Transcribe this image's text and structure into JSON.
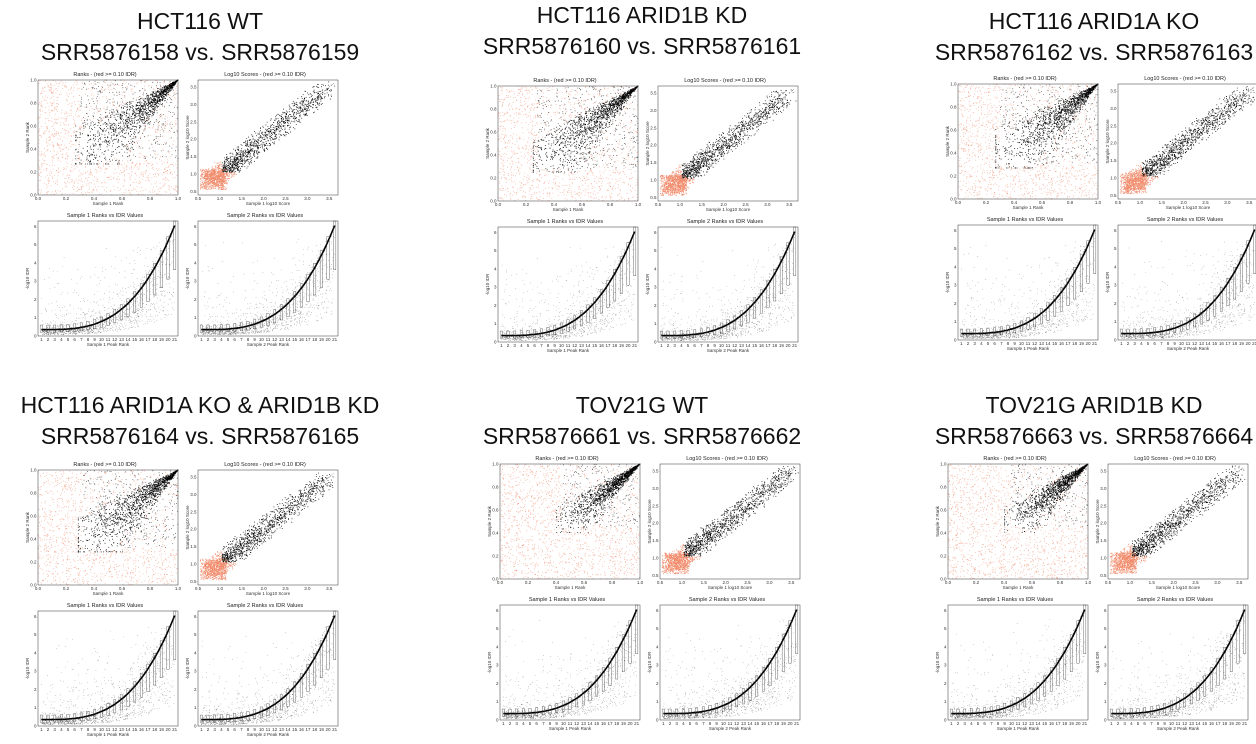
{
  "panels": [
    {
      "title_line1": "HCT116 WT",
      "title_line2": "SRR5876158 vs. SRR5876159",
      "cutoff": 0.3,
      "spread": 0.55,
      "density": 1.0
    },
    {
      "title_line1": "HCT116 ARID1B KD",
      "title_line2": "SRR5876160 vs. SRR5876161",
      "cutoff": 0.28,
      "spread": 0.5,
      "density": 1.0
    },
    {
      "title_line1": "HCT116 ARID1A KO",
      "title_line2": "SRR5876162 vs. SRR5876163",
      "cutoff": 0.3,
      "spread": 0.55,
      "density": 1.0
    },
    {
      "title_line1": "HCT116 ARID1A KO & ARID1B KD",
      "title_line2": "SRR5876164 vs. SRR5876165",
      "cutoff": 0.32,
      "spread": 0.55,
      "density": 1.0
    },
    {
      "title_line1": "TOV21G WT",
      "title_line2": "SRR5876661 vs. SRR5876662",
      "cutoff": 0.45,
      "spread": 0.45,
      "density": 1.0
    },
    {
      "title_line1": "TOV21G  ARID1B KD",
      "title_line2": "SRR5876663 vs. SRR5876664",
      "cutoff": 0.45,
      "spread": 0.45,
      "density": 1.0
    }
  ],
  "subplots": {
    "ranks": {
      "title": "Ranks - (red >= 0.10 IDR)",
      "xlabel": "Sample 1 Rank",
      "ylabel": "Sample 2 Rank",
      "ticks": [
        "0.0",
        "0.2",
        "0.4",
        "0.6",
        "0.8",
        "1.0"
      ]
    },
    "scores": {
      "title": "Log10 Scores - (red >= 0.10 IDR)",
      "xlabel": "Sample 1 log10 Score",
      "ylabel": "Sample 2 log10 Score",
      "xticks": [
        "0.5",
        "1.0",
        "1.5",
        "2.0",
        "2.5",
        "3.0",
        "3.5"
      ],
      "yticks": [
        "0.5",
        "1.0",
        "1.5",
        "2.0",
        "2.5",
        "3.0",
        "3.5"
      ]
    },
    "idr1": {
      "title": "Sample 1 Ranks vs IDR Values",
      "xlabel": "Sample 1 Peak Rank",
      "ylabel": "-log10 IDR"
    },
    "idr2": {
      "title": "Sample 2 Ranks vs IDR Values",
      "xlabel": "Sample 2 Peak Rank",
      "ylabel": "-log10 IDR"
    },
    "idr_xticks": [
      "1",
      "2",
      "3",
      "4",
      "5",
      "6",
      "7",
      "8",
      "9",
      "10",
      "11",
      "12",
      "13",
      "14",
      "15",
      "16",
      "17",
      "18",
      "19",
      "20",
      "21"
    ],
    "idr_yticks": [
      "0",
      "1",
      "2",
      "3",
      "4",
      "5",
      "6"
    ]
  },
  "colors": {
    "passing": "#000000",
    "failing": "#f08a6a"
  },
  "chart_data": [
    {
      "type": "scatter",
      "title": "Ranks - (red >= 0.10 IDR)",
      "xlabel": "Sample 1 Rank",
      "ylabel": "Sample 2 Rank",
      "xlim": [
        0,
        1
      ],
      "ylim": [
        0,
        1
      ],
      "series": [
        {
          "name": "red >= 0.10 IDR"
        }
      ]
    },
    {
      "type": "scatter",
      "title": "Log10 Scores - (red >= 0.10 IDR)",
      "xlabel": "Sample 1 log10 Score",
      "ylabel": "Sample 2 log10 Score",
      "xlim": [
        0.5,
        3.7
      ],
      "ylim": [
        0.4,
        3.7
      ]
    },
    {
      "type": "scatter",
      "title": "Sample 1 Ranks vs IDR Values",
      "xlabel": "Sample 1 Peak Rank",
      "ylabel": "-log10 IDR",
      "xlim": [
        1,
        21
      ],
      "ylim": [
        0,
        6
      ]
    },
    {
      "type": "scatter",
      "title": "Sample 2 Ranks vs IDR Values",
      "xlabel": "Sample 2 Peak Rank",
      "ylabel": "-log10 IDR",
      "xlim": [
        1,
        21
      ],
      "ylim": [
        0,
        6
      ]
    }
  ]
}
